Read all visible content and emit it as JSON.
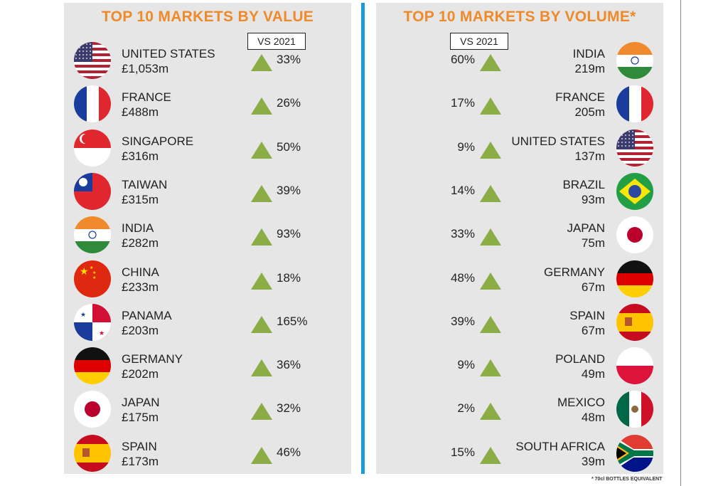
{
  "value_panel": {
    "title": "TOP 10 MARKETS BY VALUE",
    "comparison_label": "VS 2021",
    "rows": [
      {
        "country": "UNITED STATES",
        "value": "£1,053m",
        "change": "33%",
        "flag": "us"
      },
      {
        "country": "FRANCE",
        "value": "£488m",
        "change": "26%",
        "flag": "fr"
      },
      {
        "country": "SINGAPORE",
        "value": "£316m",
        "change": "50%",
        "flag": "sg"
      },
      {
        "country": "TAIWAN",
        "value": "£315m",
        "change": "39%",
        "flag": "tw"
      },
      {
        "country": "INDIA",
        "value": "£282m",
        "change": "93%",
        "flag": "in"
      },
      {
        "country": "CHINA",
        "value": "£233m",
        "change": "18%",
        "flag": "cn"
      },
      {
        "country": "PANAMA",
        "value": "£203m",
        "change": "165%",
        "flag": "pa"
      },
      {
        "country": "GERMANY",
        "value": "£202m",
        "change": "36%",
        "flag": "de"
      },
      {
        "country": "JAPAN",
        "value": "£175m",
        "change": "32%",
        "flag": "jp"
      },
      {
        "country": "SPAIN",
        "value": "£173m",
        "change": "46%",
        "flag": "es"
      }
    ]
  },
  "volume_panel": {
    "title": "TOP 10 MARKETS BY VOLUME*",
    "comparison_label": "VS 2021",
    "rows": [
      {
        "country": "INDIA",
        "value": "219m",
        "change": "60%",
        "flag": "in"
      },
      {
        "country": "FRANCE",
        "value": "205m",
        "change": "17%",
        "flag": "fr"
      },
      {
        "country": "UNITED STATES",
        "value": "137m",
        "change": "9%",
        "flag": "us"
      },
      {
        "country": "BRAZIL",
        "value": "93m",
        "change": "14%",
        "flag": "br"
      },
      {
        "country": "JAPAN",
        "value": "75m",
        "change": "33%",
        "flag": "jp"
      },
      {
        "country": "GERMANY",
        "value": "67m",
        "change": "48%",
        "flag": "de"
      },
      {
        "country": "SPAIN",
        "value": "67m",
        "change": "39%",
        "flag": "es"
      },
      {
        "country": "POLAND",
        "value": "49m",
        "change": "9%",
        "flag": "pl"
      },
      {
        "country": "MEXICO",
        "value": "48m",
        "change": "2%",
        "flag": "mx"
      },
      {
        "country": "SOUTH AFRICA",
        "value": "39m",
        "change": "15%",
        "flag": "za"
      }
    ],
    "footnote": "* 70cl BOTTLES EQUIVALENT"
  },
  "colors": {
    "title": "#ee8a2a",
    "increase_arrow": "#8aad45",
    "divider": "#1a9ad6",
    "panel": "#e6e6e6"
  }
}
